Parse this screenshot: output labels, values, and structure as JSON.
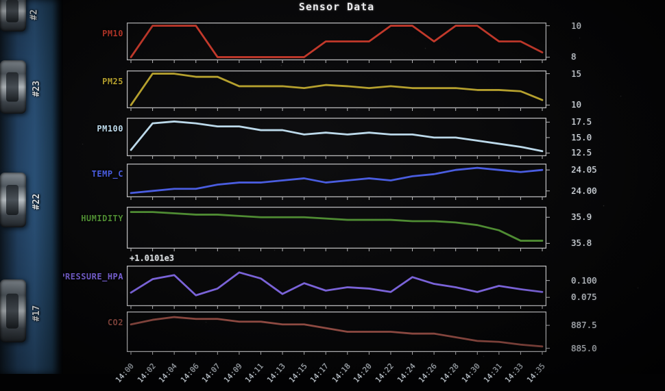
{
  "pcb": {
    "connectors": [
      {
        "label": "#2"
      },
      {
        "label": "#23"
      },
      {
        "label": "#22"
      },
      {
        "label": "#17"
      }
    ]
  },
  "chart_data": {
    "type": "line",
    "title": "Sensor Data",
    "x": [
      "14:00",
      "14:02",
      "14:04",
      "14:06",
      "14:07",
      "14:09",
      "14:11",
      "14:13",
      "14:15",
      "14:17",
      "14:18",
      "14:20",
      "14:22",
      "14:24",
      "14:26",
      "14:28",
      "14:30",
      "14:31",
      "14:33",
      "14:35"
    ],
    "legend_position": "none",
    "grid": false,
    "subplots": [
      {
        "name": "PM10",
        "color": "#c2392b",
        "values": [
          8,
          10,
          10,
          10,
          8,
          8,
          8,
          8,
          8,
          9,
          9,
          9,
          10,
          10,
          9,
          10,
          10,
          9,
          9,
          8.3
        ],
        "ylim": [
          7.8,
          10.2
        ],
        "yticks": [
          {
            "v": 10,
            "label": "10"
          },
          {
            "v": 8,
            "label": "8"
          }
        ]
      },
      {
        "name": "PM25",
        "color": "#b5a02e",
        "values": [
          10,
          15,
          15,
          14.5,
          14.5,
          13,
          13,
          13,
          12.7,
          13.2,
          13,
          12.7,
          13,
          12.7,
          12.7,
          12.7,
          12.4,
          12.4,
          12.2,
          10.8
        ],
        "ylim": [
          9.5,
          15.5
        ],
        "yticks": [
          {
            "v": 15,
            "label": "15"
          },
          {
            "v": 10,
            "label": "10"
          }
        ]
      },
      {
        "name": "PM100",
        "color": "#bcd9ea",
        "values": [
          13,
          17.3,
          17.6,
          17.3,
          16.8,
          16.8,
          16.2,
          16.2,
          15.5,
          15.8,
          15.5,
          15.8,
          15.5,
          15.5,
          15,
          15,
          14.5,
          14,
          13.5,
          12.8
        ],
        "ylim": [
          12,
          18.2
        ],
        "yticks": [
          {
            "v": 17.5,
            "label": "17.5"
          },
          {
            "v": 15.0,
            "label": "15.0"
          },
          {
            "v": 12.5,
            "label": "12.5"
          }
        ]
      },
      {
        "name": "TEMP_C",
        "color": "#4a5de0",
        "values": [
          23.995,
          24.0,
          24.005,
          24.005,
          24.015,
          24.02,
          24.02,
          24.025,
          24.03,
          24.02,
          24.025,
          24.03,
          24.025,
          24.035,
          24.04,
          24.05,
          24.055,
          24.05,
          24.045,
          24.05
        ],
        "ylim": [
          23.985,
          24.065
        ],
        "yticks": [
          {
            "v": 24.05,
            "label": "24.05"
          },
          {
            "v": 24.0,
            "label": "24.00"
          }
        ]
      },
      {
        "name": "HUMIDITY",
        "color": "#4f8c33",
        "values": [
          35.92,
          35.92,
          35.915,
          35.91,
          35.91,
          35.905,
          35.9,
          35.9,
          35.9,
          35.895,
          35.89,
          35.89,
          35.89,
          35.885,
          35.885,
          35.88,
          35.87,
          35.85,
          35.81,
          35.81
        ],
        "ylim": [
          35.78,
          35.94
        ],
        "yticks": [
          {
            "v": 35.9,
            "label": "35.9"
          },
          {
            "v": 35.8,
            "label": "35.8"
          }
        ]
      },
      {
        "name": "PRESSURE_HPA",
        "color": "#7a63d8",
        "offset_text": "+1.0101e3",
        "values": [
          0.082,
          0.102,
          0.108,
          0.078,
          0.088,
          0.112,
          0.103,
          0.08,
          0.096,
          0.085,
          0.09,
          0.088,
          0.083,
          0.105,
          0.095,
          0.09,
          0.083,
          0.092,
          0.087,
          0.083
        ],
        "ylim": [
          0.062,
          0.122
        ],
        "yticks": [
          {
            "v": 0.1,
            "label": "0.100"
          },
          {
            "v": 0.075,
            "label": "0.075"
          }
        ]
      },
      {
        "name": "CO2",
        "color": "#8e4a42",
        "values": [
          887.6,
          888.1,
          888.4,
          888.2,
          888.2,
          887.9,
          887.9,
          887.6,
          887.6,
          887.2,
          886.8,
          886.8,
          886.8,
          886.6,
          886.6,
          886.2,
          885.8,
          885.7,
          885.4,
          885.2
        ],
        "ylim": [
          884.6,
          889.0
        ],
        "yticks": [
          {
            "v": 887.5,
            "label": "887.5"
          },
          {
            "v": 885.0,
            "label": "885.0"
          }
        ]
      }
    ]
  }
}
